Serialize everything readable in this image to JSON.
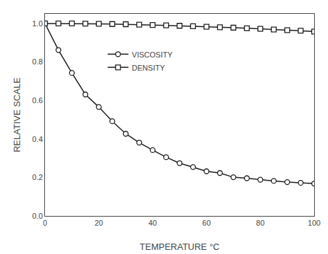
{
  "chart_data": {
    "type": "line",
    "x_label": "TEMPERATURE °C",
    "y_label": "RELATIVE SCALE",
    "xlim": [
      0,
      100
    ],
    "ylim": [
      0.0,
      1.05
    ],
    "xticks": [
      0,
      20,
      40,
      60,
      80,
      100
    ],
    "yticks": [
      {
        "value": 0.0,
        "label": "0.0"
      },
      0.2,
      0.4,
      0.6,
      0.8,
      {
        "value": 1.0,
        "label": "1.0"
      }
    ],
    "grid": false,
    "legend": "upper left",
    "series": [
      {
        "name": "VISCOSITY",
        "color": "#1a1a1a",
        "marker": "circle",
        "line_style": "solid",
        "x": [
          0,
          5,
          10,
          15,
          20,
          25,
          30,
          35,
          40,
          45,
          50,
          55,
          60,
          65,
          70,
          75,
          80,
          85,
          90,
          95,
          100
        ],
        "values": [
          1.0,
          0.862,
          0.743,
          0.631,
          0.566,
          0.492,
          0.427,
          0.381,
          0.342,
          0.305,
          0.274,
          0.254,
          0.232,
          0.223,
          0.201,
          0.196,
          0.188,
          0.182,
          0.176,
          0.172,
          0.168
        ]
      },
      {
        "name": "DENSITY",
        "color": "#1a1a1a",
        "marker": "square",
        "line_style": "solid",
        "x": [
          0,
          5,
          10,
          15,
          20,
          25,
          30,
          35,
          40,
          45,
          50,
          55,
          60,
          65,
          70,
          75,
          80,
          85,
          90,
          95,
          100
        ],
        "values": [
          1.0,
          1.0,
          1.0,
          0.999,
          0.998,
          0.997,
          0.996,
          0.994,
          0.992,
          0.99,
          0.988,
          0.986,
          0.983,
          0.98,
          0.978,
          0.975,
          0.972,
          0.969,
          0.965,
          0.962,
          0.958
        ]
      }
    ]
  }
}
